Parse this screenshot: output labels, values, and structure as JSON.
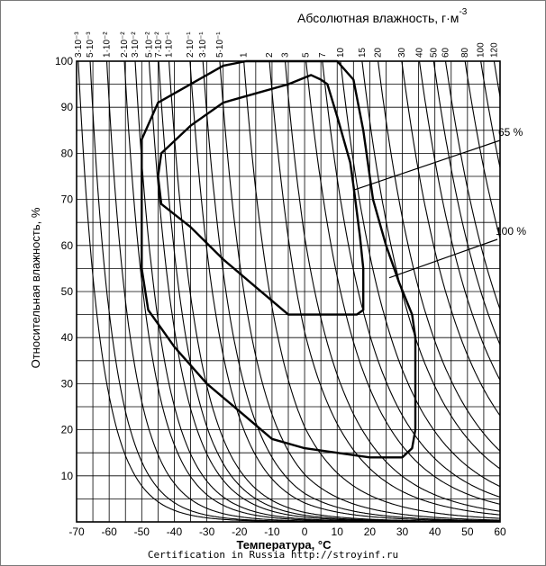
{
  "chart_data": {
    "type": "line",
    "title": "",
    "xlabel": "Температура, °С",
    "ylabel": "Относительная влажность, %",
    "top_axis_label": "Абсолютная влажность, г·м",
    "top_axis_label_sup": "-3",
    "xlim": [
      -70,
      60
    ],
    "ylim": [
      0,
      100
    ],
    "x_ticks": [
      -70,
      -60,
      -50,
      -40,
      -30,
      -20,
      -10,
      0,
      10,
      20,
      30,
      40,
      50,
      60
    ],
    "y_ticks": [
      10,
      20,
      30,
      40,
      50,
      60,
      70,
      80,
      90,
      100
    ],
    "grid": true,
    "absolute_humidity_lines": [
      {
        "label": "3·10⁻³",
        "value": 0.003
      },
      {
        "label": "5·10⁻³",
        "value": 0.005
      },
      {
        "label": "1·10⁻²",
        "value": 0.01
      },
      {
        "label": "2·10⁻²",
        "value": 0.02
      },
      {
        "label": "3·10⁻²",
        "value": 0.03
      },
      {
        "label": "5·10⁻²",
        "value": 0.05
      },
      {
        "label": "7·10⁻²",
        "value": 0.07
      },
      {
        "label": "1·10⁻¹",
        "value": 0.1
      },
      {
        "label": "2·10⁻¹",
        "value": 0.2
      },
      {
        "label": "3·10⁻¹",
        "value": 0.3
      },
      {
        "label": "5·10⁻¹",
        "value": 0.5
      },
      {
        "label": "1",
        "value": 1
      },
      {
        "label": "2",
        "value": 2
      },
      {
        "label": "3",
        "value": 3
      },
      {
        "label": "5",
        "value": 5
      },
      {
        "label": "7",
        "value": 7
      },
      {
        "label": "10",
        "value": 10
      },
      {
        "label": "15",
        "value": 15
      },
      {
        "label": "20",
        "value": 20
      },
      {
        "label": "30",
        "value": 30
      },
      {
        "label": "40",
        "value": 40
      },
      {
        "label": "50",
        "value": 50
      },
      {
        "label": "60",
        "value": 60
      },
      {
        "label": "80",
        "value": 80
      },
      {
        "label": "100",
        "value": 100
      },
      {
        "label": "120",
        "value": 120
      }
    ],
    "series": [
      {
        "name": "100 %",
        "points": [
          [
            -18,
            100
          ],
          [
            10,
            100
          ],
          [
            15,
            96
          ],
          [
            18,
            85
          ],
          [
            21,
            70
          ],
          [
            25,
            60
          ],
          [
            29,
            52
          ],
          [
            33,
            45
          ],
          [
            34,
            40
          ],
          [
            34,
            20
          ],
          [
            33,
            16
          ],
          [
            30,
            14
          ],
          [
            20,
            14
          ],
          [
            10,
            15
          ],
          [
            0,
            16
          ],
          [
            -10,
            18
          ],
          [
            -20,
            24
          ],
          [
            -30,
            30
          ],
          [
            -40,
            38
          ],
          [
            -48,
            46
          ],
          [
            -50,
            55
          ],
          [
            -50,
            83
          ],
          [
            -45,
            91
          ],
          [
            -35,
            95
          ],
          [
            -25,
            99
          ],
          [
            -18,
            100
          ]
        ]
      },
      {
        "name": "65 %",
        "points": [
          [
            2,
            97
          ],
          [
            5,
            96
          ],
          [
            7,
            95
          ],
          [
            10,
            88
          ],
          [
            14,
            78
          ],
          [
            15,
            73
          ],
          [
            17,
            62
          ],
          [
            18,
            55
          ],
          [
            18,
            46
          ],
          [
            16,
            45
          ],
          [
            -5,
            45
          ],
          [
            -15,
            51
          ],
          [
            -25,
            57
          ],
          [
            -35,
            64
          ],
          [
            -44,
            69
          ],
          [
            -45,
            75
          ],
          [
            -44,
            80
          ],
          [
            -35,
            86
          ],
          [
            -25,
            91
          ],
          [
            -15,
            93
          ],
          [
            -5,
            95
          ],
          [
            2,
            97
          ]
        ]
      }
    ],
    "annotations": [
      {
        "text": "65 %",
        "target": [
          15,
          72
        ]
      },
      {
        "text": "100 %",
        "target": [
          26,
          53
        ]
      }
    ]
  },
  "footer": {
    "credit": "Certification in Russia http://stroyinf.ru"
  }
}
